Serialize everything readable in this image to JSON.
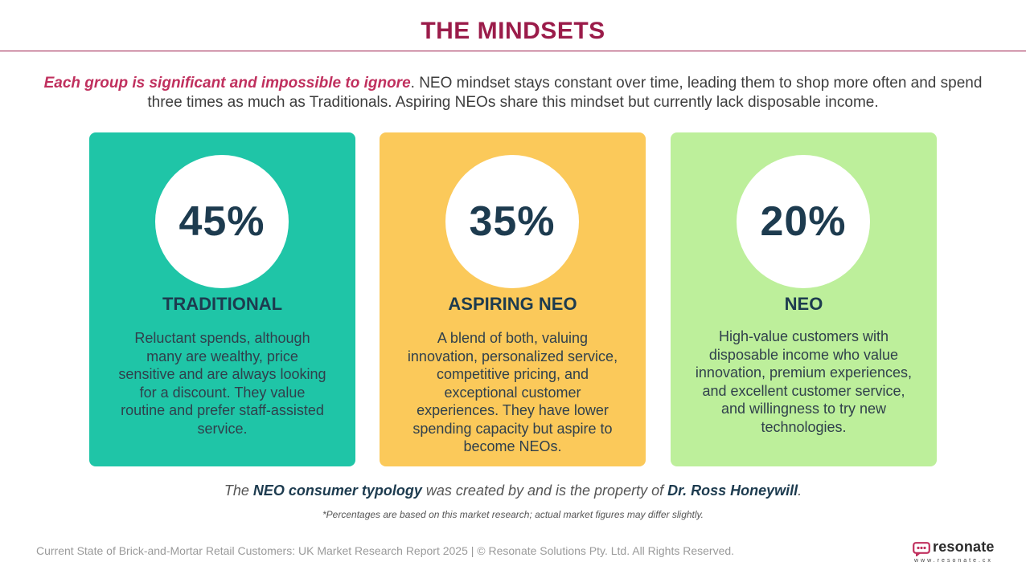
{
  "title": "THE MINDSETS",
  "intro": {
    "emphasis": "Each group is significant and impossible to ignore",
    "rest": ". NEO mindset stays constant over time, leading them to shop more often and spend three times as much as Traditionals. Aspiring NEOs share this mindset but currently lack disposable income."
  },
  "cards": [
    {
      "percent": "45%",
      "heading": "TRADITIONAL",
      "description": "Reluctant spends, although many are wealthy, price sensitive and are always looking for a discount. They value routine and prefer staff-assisted service.",
      "color": "#1fc5a7"
    },
    {
      "percent": "35%",
      "heading": "ASPIRING NEO",
      "description": "A blend of both, valuing innovation, personalized service, competitive pricing, and exceptional customer experiences. They have lower spending capacity but aspire to become NEOs.",
      "color": "#fbc95a"
    },
    {
      "percent": "20%",
      "heading": "NEO",
      "description": "High-value customers with disposable income who value innovation, premium experiences, and excellent customer service, and willingness to try new technologies.",
      "color": "#bdef9b"
    }
  ],
  "attribution": {
    "prefix": "The ",
    "term": "NEO consumer typology",
    "middle": " was created by and is the property of ",
    "author": "Dr. Ross Honeywill",
    "suffix": "."
  },
  "footnote": "*Percentages are based on this market research; actual market figures may differ slightly.",
  "footer": "Current State of Brick-and-Mortar Retail Customers: UK Market Research Report 2025 | © Resonate Solutions Pty. Ltd. All Rights Reserved.",
  "logo": {
    "word": "resonate",
    "url": "www.resonate.cx",
    "icon": "resonate-logo-icon",
    "color": "#c0305e"
  }
}
